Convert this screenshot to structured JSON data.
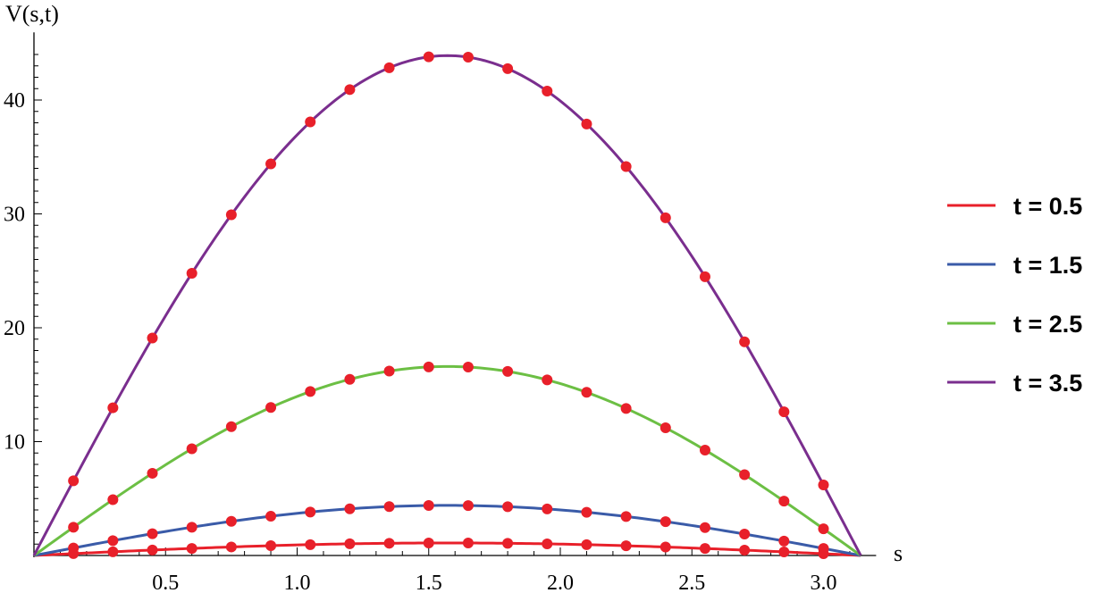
{
  "chart_data": {
    "type": "line",
    "xlabel": "s",
    "ylabel": "V(s,t)",
    "xlim": [
      0,
      3.1416
    ],
    "ylim": [
      0,
      45
    ],
    "x_ticks": [
      "0.5",
      "1.0",
      "1.5",
      "2.0",
      "2.5",
      "3.0"
    ],
    "y_ticks": [
      "10",
      "20",
      "30",
      "40"
    ],
    "legend_position": "right",
    "grid": false,
    "marker_color": "#e8202a",
    "marker_x": [
      0.15,
      0.3,
      0.45,
      0.6,
      0.75,
      0.9,
      1.05,
      1.2,
      1.35,
      1.5,
      1.65,
      1.8,
      1.95,
      2.1,
      2.25,
      2.4,
      2.55,
      2.7,
      2.85,
      3.0
    ],
    "series": [
      {
        "name": "t = 0.5",
        "color": "#e8202a",
        "amplitude": 1.1
      },
      {
        "name": "t = 1.5",
        "color": "#3a5ba8",
        "amplitude": 4.4
      },
      {
        "name": "t = 2.5",
        "color": "#6cbf44",
        "amplitude": 16.6
      },
      {
        "name": "t = 3.5",
        "color": "#7a2e8e",
        "amplitude": 43.9
      }
    ],
    "curve_function": "amplitude * sin(s)"
  }
}
